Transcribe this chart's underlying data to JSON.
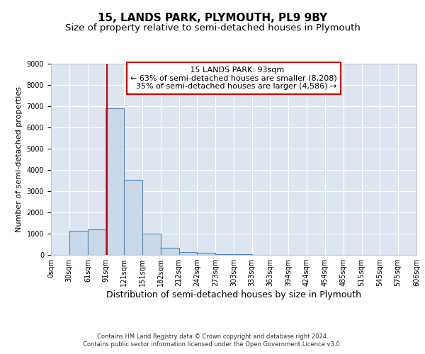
{
  "title": "15, LANDS PARK, PLYMOUTH, PL9 9BY",
  "subtitle": "Size of property relative to semi-detached houses in Plymouth",
  "xlabel": "Distribution of semi-detached houses by size in Plymouth",
  "ylabel": "Number of semi-detached properties",
  "bar_color": "#c8d8e8",
  "bar_edge_color": "#5588bb",
  "background_color": "#dde6f0",
  "bin_edges": [
    0,
    30,
    61,
    91,
    121,
    151,
    182,
    212,
    242,
    273,
    303,
    333,
    363,
    394,
    424,
    454,
    485,
    515,
    545,
    575,
    606
  ],
  "bin_labels": [
    "0sqm",
    "30sqm",
    "61sqm",
    "91sqm",
    "121sqm",
    "151sqm",
    "182sqm",
    "212sqm",
    "242sqm",
    "273sqm",
    "303sqm",
    "333sqm",
    "363sqm",
    "394sqm",
    "424sqm",
    "454sqm",
    "485sqm",
    "515sqm",
    "545sqm",
    "575sqm",
    "606sqm"
  ],
  "bar_heights": [
    0,
    1150,
    1200,
    6900,
    3550,
    1000,
    350,
    150,
    100,
    50,
    20,
    10,
    5,
    3,
    2,
    1,
    1,
    1,
    0,
    0
  ],
  "property_size": 93,
  "property_label": "15 LANDS PARK: 93sqm",
  "pct_smaller": 63,
  "pct_larger": 35,
  "n_smaller": 8208,
  "n_larger": 4586,
  "ylim": [
    0,
    9000
  ],
  "vline_color": "#cc0000",
  "grid_color": "#ffffff",
  "annotation_box_edge_color": "#cc0000",
  "footer_text1": "Contains HM Land Registry data © Crown copyright and database right 2024.",
  "footer_text2": "Contains public sector information licensed under the Open Government Licence v3.0.",
  "title_fontsize": 11,
  "subtitle_fontsize": 9.5,
  "xlabel_fontsize": 9,
  "ylabel_fontsize": 8,
  "tick_fontsize": 7,
  "annot_fontsize": 8,
  "footer_fontsize": 6
}
